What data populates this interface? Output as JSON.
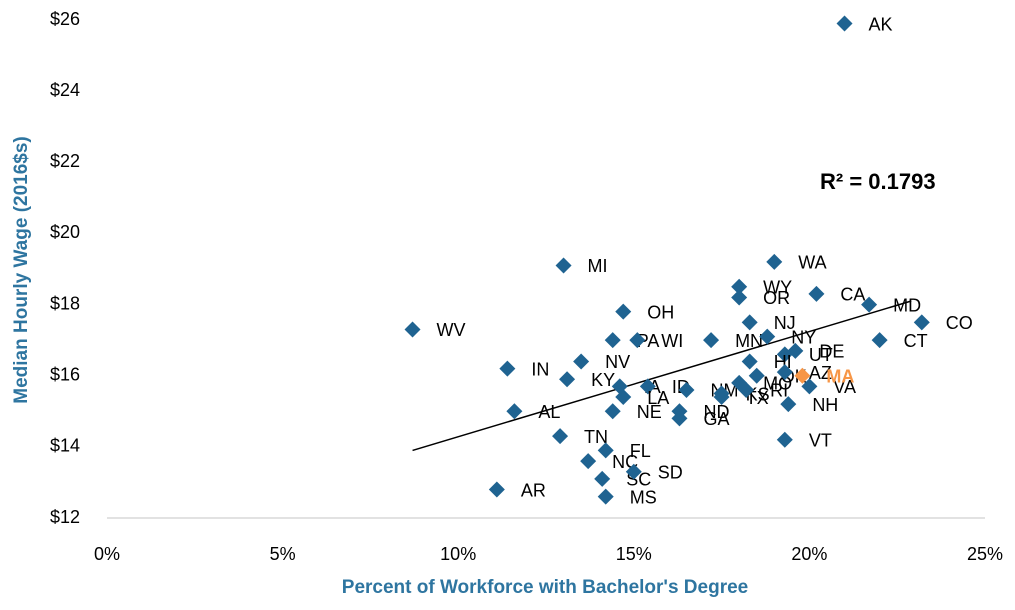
{
  "chart_data": {
    "type": "scatter",
    "x_label": "Percent of Workforce with Bachelor's Degree",
    "y_label": "Median Hourly Wage (2016$s)",
    "annotation": "R² = 0.1793",
    "xlim": [
      0,
      25
    ],
    "ylim": [
      12,
      26
    ],
    "xticks": [
      {
        "value": 0,
        "label": "0%"
      },
      {
        "value": 5,
        "label": "5%"
      },
      {
        "value": 10,
        "label": "10%"
      },
      {
        "value": 15,
        "label": "15%"
      },
      {
        "value": 20,
        "label": "20%"
      },
      {
        "value": 25,
        "label": "25%"
      }
    ],
    "yticks": [
      {
        "value": 12,
        "label": "$12"
      },
      {
        "value": 14,
        "label": "$14"
      },
      {
        "value": 16,
        "label": "$16"
      },
      {
        "value": 18,
        "label": "$18"
      },
      {
        "value": 20,
        "label": "$20"
      },
      {
        "value": 22,
        "label": "$22"
      },
      {
        "value": 24,
        "label": "$24"
      },
      {
        "value": 26,
        "label": "$26"
      }
    ],
    "trendline": {
      "color": "#000000",
      "x": [
        8.7,
        22.9
      ],
      "y": [
        13.9,
        18.1
      ]
    },
    "series": [
      {
        "color": "#1f6391",
        "labels": [
          "AK",
          "WA",
          "MI",
          "WY",
          "OR",
          "CA",
          "MD",
          "CO",
          "CT",
          "OH",
          "WV",
          "NJ",
          "PA",
          "WI",
          "MN",
          "NY",
          "DE",
          "UT",
          "HI",
          "NV",
          "IN",
          "KY",
          "IA",
          "ID",
          "LA",
          "NM",
          "KS",
          "MO",
          "OK",
          "TX",
          "RI",
          "AZ",
          "VA",
          "NH",
          "NE",
          "ND",
          "GA",
          "AL",
          "TN",
          "FL",
          "NC",
          "SC",
          "SD",
          "MS",
          "AR",
          "VT"
        ],
        "x": [
          21.0,
          19.0,
          13.0,
          18.0,
          18.0,
          20.2,
          21.7,
          23.2,
          22.0,
          14.7,
          8.7,
          18.3,
          14.4,
          15.1,
          17.2,
          18.8,
          19.6,
          19.3,
          18.3,
          13.5,
          11.4,
          13.1,
          14.6,
          15.4,
          14.7,
          16.5,
          17.5,
          18.0,
          18.5,
          17.5,
          18.2,
          19.3,
          20.0,
          19.4,
          14.4,
          16.3,
          16.3,
          11.6,
          12.9,
          14.2,
          13.7,
          14.1,
          15.0,
          14.2,
          11.1,
          19.3
        ],
        "y": [
          25.9,
          19.2,
          19.1,
          18.5,
          18.2,
          18.3,
          18.0,
          17.5,
          17.0,
          17.8,
          17.3,
          17.5,
          17.0,
          17.0,
          17.0,
          17.1,
          16.7,
          16.6,
          16.4,
          16.4,
          16.2,
          15.9,
          15.7,
          15.7,
          15.4,
          15.6,
          15.5,
          15.8,
          16.0,
          15.4,
          15.6,
          16.1,
          15.7,
          15.2,
          15.0,
          15.0,
          14.8,
          15.0,
          14.3,
          13.9,
          13.6,
          13.1,
          13.3,
          12.6,
          12.8,
          14.2
        ]
      },
      {
        "color": "#f79646",
        "labels": [
          "MA"
        ],
        "x": [
          19.8
        ],
        "y": [
          16.0
        ]
      }
    ]
  }
}
